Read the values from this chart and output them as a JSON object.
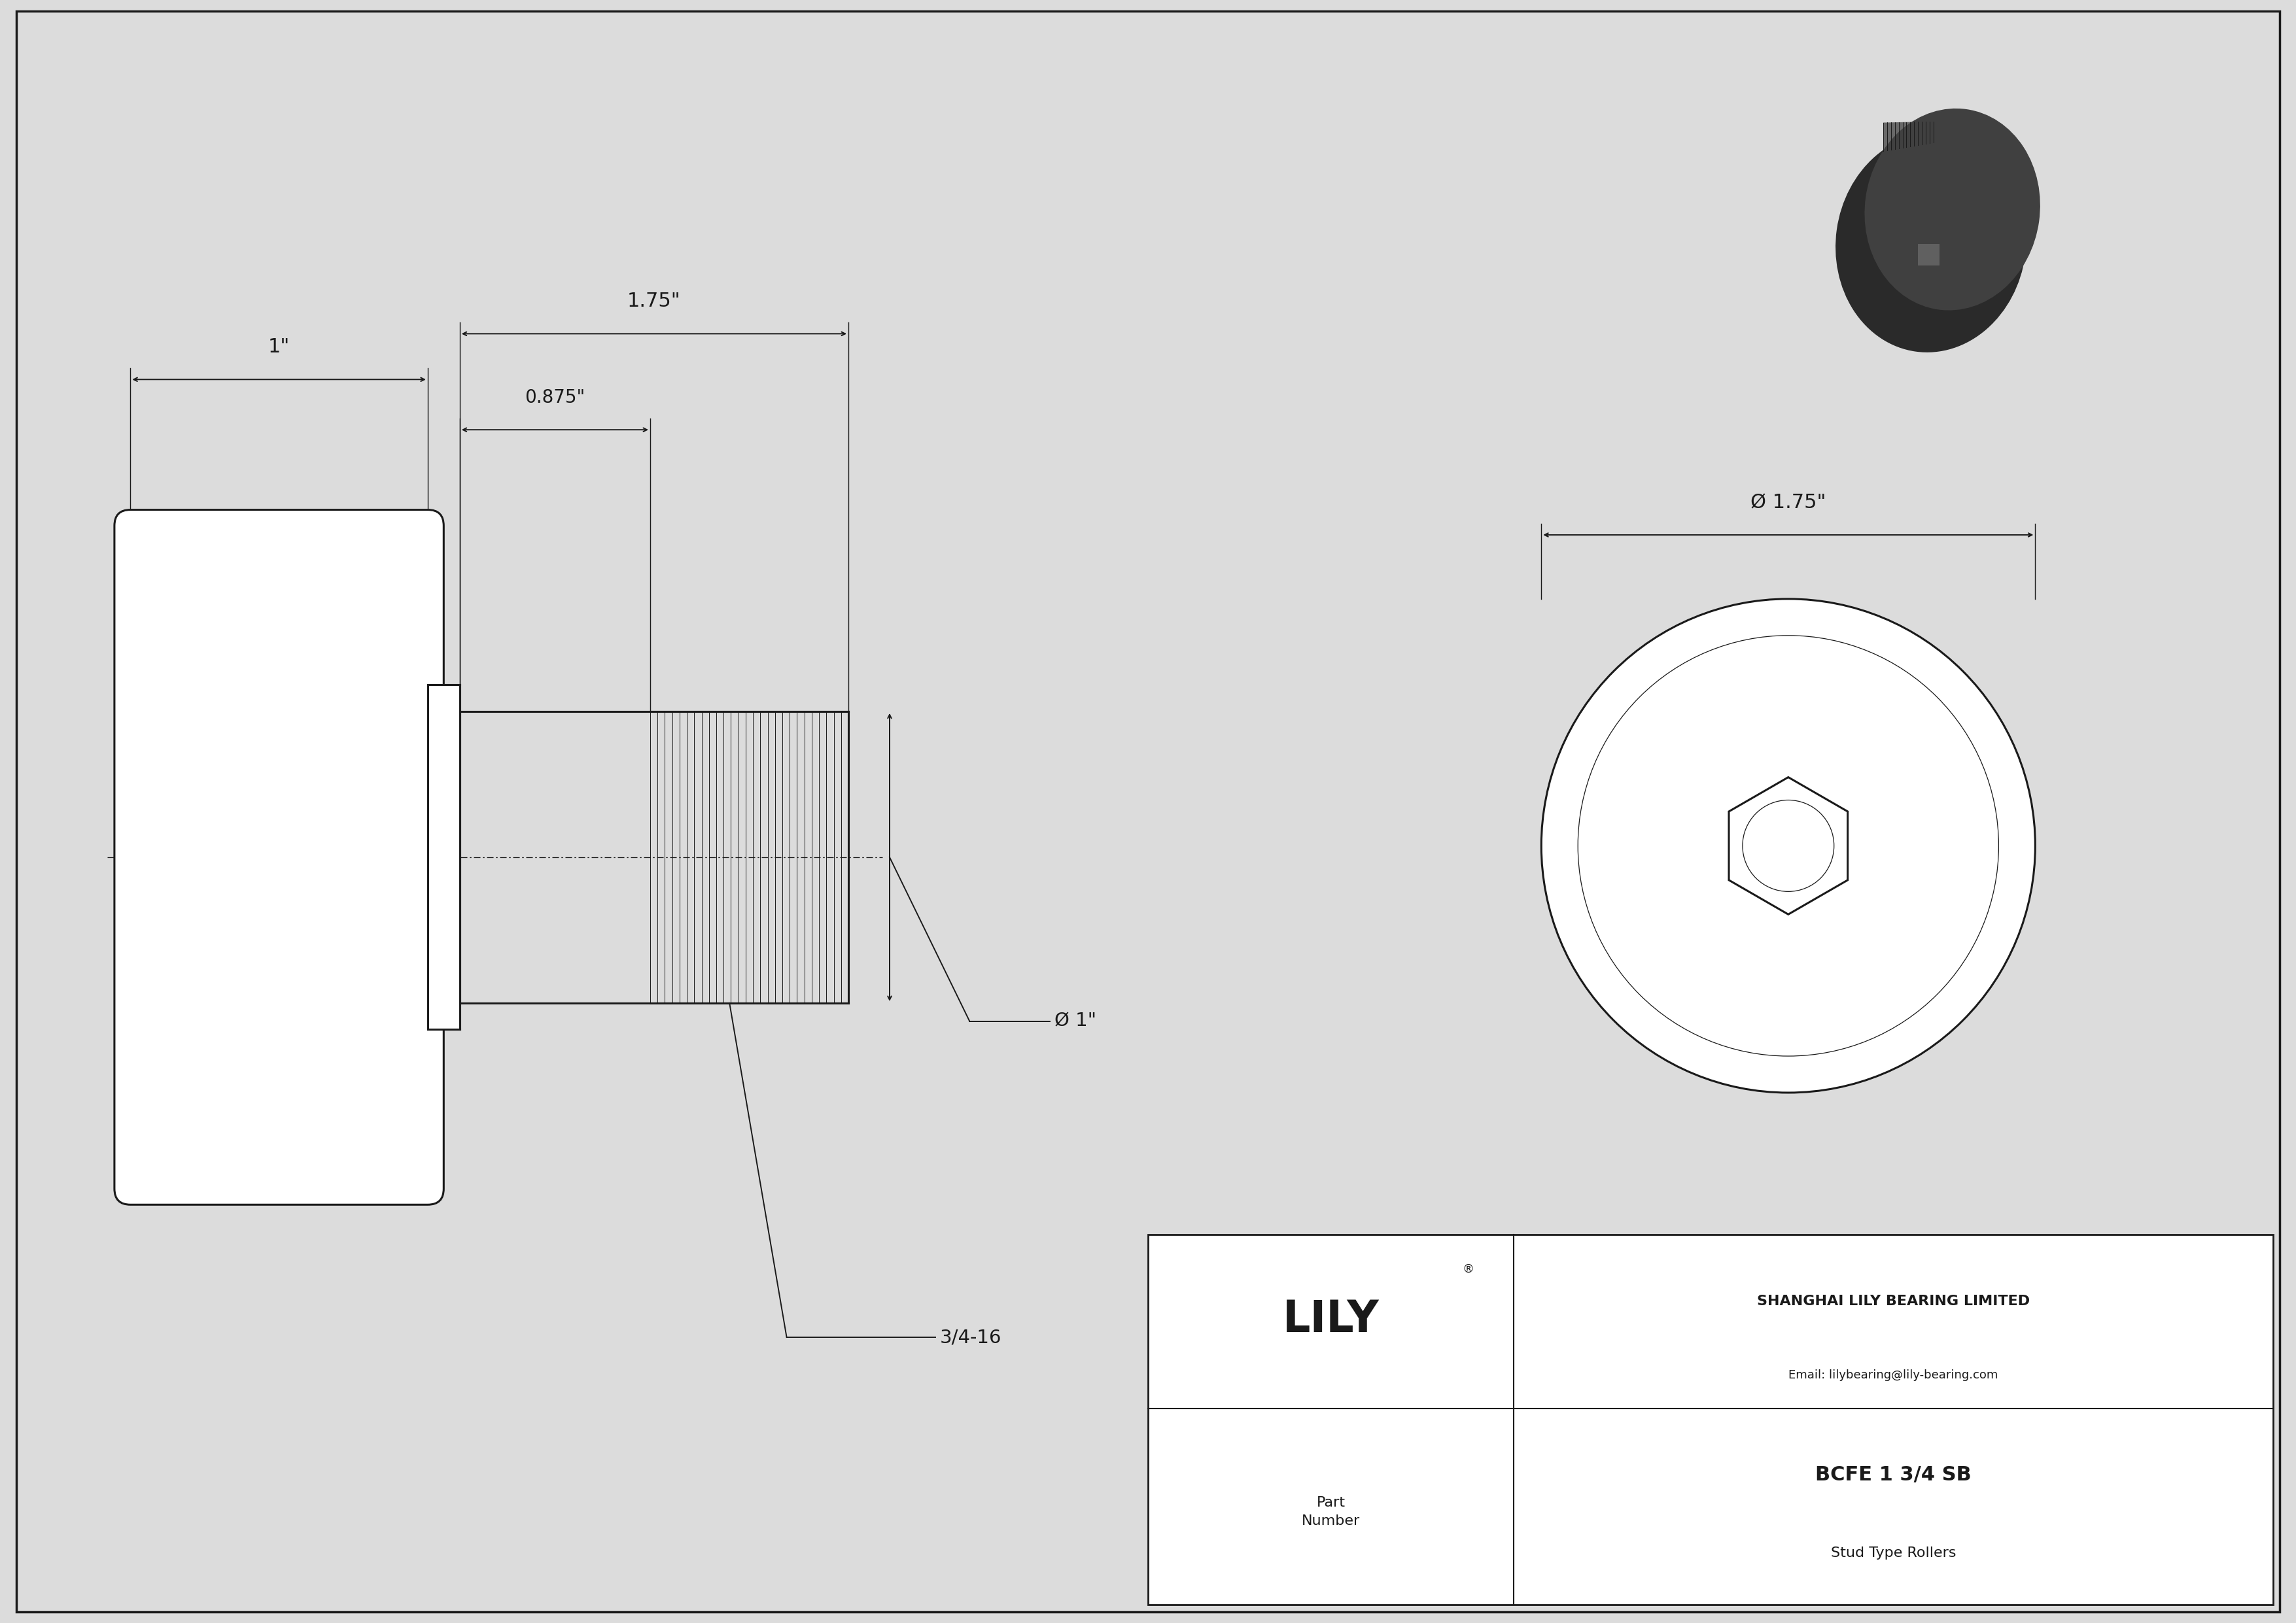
{
  "bg_color": "#dcdcdc",
  "drawing_bg": "#ffffff",
  "line_color": "#1a1a1a",
  "company": "SHANGHAI LILY BEARING LIMITED",
  "email": "Email: lilybearing@lily-bearing.com",
  "part_number": "BCFE 1 3/4 SB",
  "part_type": "Stud Type Rollers",
  "part_label": "Part\nNumber",
  "logo_text": "LILY",
  "dim_1": "1\"",
  "dim_2": "1.75\"",
  "dim_3": "0.875\"",
  "dim_4": "Ø 1\"",
  "dim_5": "Ø 1.75\"",
  "thread_label": "3/4-16",
  "lw_main": 2.2,
  "lw_dim": 1.4,
  "lw_thin": 0.9
}
